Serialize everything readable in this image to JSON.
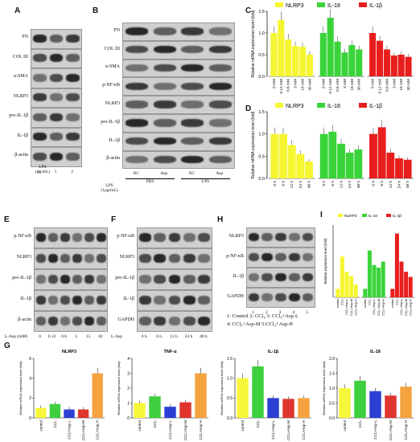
{
  "panels": {
    "A": {
      "label": "A",
      "rows": [
        "FN",
        "COL III",
        "α-SMA",
        "NLRP3",
        "pro-IL-1β",
        "IL-1β",
        "β-actin"
      ],
      "lps_label": "LPS\n(μg/mL)",
      "lanes": [
        "0",
        "1",
        "2"
      ]
    },
    "B": {
      "label": "B",
      "rows": [
        "FN",
        "COL III",
        "α-SMA",
        "p-NF-κB",
        "NLRP3",
        "pro-IL-1β",
        "IL-1β",
        "β-actin"
      ],
      "lanes": [
        "NC",
        "Asp",
        "NC",
        "Asp"
      ],
      "groups": [
        "PBS",
        "LPS"
      ],
      "lps_label": "LPS\n(1μg/mL)"
    },
    "C": {
      "label": "C",
      "ylabel": "Relative mRNA expression level (fold)"
    },
    "D": {
      "label": "D",
      "ylabel": "Relative mRNA expression level (fold)"
    },
    "E": {
      "label": "E",
      "rows": [
        "p-NF-κB",
        "NLRP3",
        "pro-IL-1β",
        "IL-1β",
        "β-actin"
      ],
      "xlabel": "L-Asp (mM)",
      "lanes": [
        "0",
        "0.12",
        "0.6",
        "3",
        "15",
        "30"
      ]
    },
    "F": {
      "label": "F",
      "rows": [
        "p-NF-κB",
        "NLRP3",
        "pro-IL-1β",
        "IL-1β",
        "GAPDH"
      ],
      "xlabel": "L-Asp",
      "lanes": [
        "0 h",
        "6 h",
        "12 h",
        "24 h",
        "48 h"
      ]
    },
    "H": {
      "label": "H",
      "rows": [
        "NLRP3",
        "p-NF-κB",
        "IL-1β",
        "GAPDH"
      ],
      "lanes": [
        "1",
        "2",
        "3",
        "4",
        "5"
      ],
      "legend1": "1: Control  2: CCl₄  3: CCl₄+Asp-L",
      "legend2": "4: CCl₄+Asp-M  5:CCl₄+Asp-H"
    },
    "I": {
      "label": "I"
    },
    "G": {
      "label": "G"
    }
  },
  "chart_data": [
    {
      "type": "bar",
      "id": "C",
      "title": "",
      "ylabel": "Relative mRNA expression level (fold)",
      "ylim": [
        0,
        1.5
      ],
      "yticks": [
        "0.0",
        "0.5",
        "1.0",
        "1.5"
      ],
      "legend": [
        "NLRP3",
        "IL-18",
        "IL-1β"
      ],
      "colors": [
        "#f5f531",
        "#3ad43a",
        "#e81e1e"
      ],
      "categories": [
        "0 mM",
        "0.12 mM",
        "0.6 mM",
        "3 mM",
        "15 mM",
        "30 mM"
      ],
      "series": [
        {
          "name": "NLRP3",
          "values": [
            1.0,
            1.3,
            0.85,
            0.7,
            0.68,
            0.5
          ]
        },
        {
          "name": "IL-18",
          "values": [
            1.0,
            1.35,
            0.8,
            0.55,
            0.72,
            0.62
          ]
        },
        {
          "name": "IL-1β",
          "values": [
            1.0,
            0.82,
            0.62,
            0.48,
            0.5,
            0.45
          ]
        }
      ],
      "annotations": [
        "**",
        "*",
        "*",
        "*",
        "*",
        "**"
      ]
    },
    {
      "type": "bar",
      "id": "D",
      "ylabel": "Relative mRNA expression level (fold)",
      "ylim": [
        0,
        1.5
      ],
      "yticks": [
        "0.0",
        "0.5",
        "1.0",
        "1.5"
      ],
      "legend": [
        "NLRP3",
        "IL-18",
        "IL-1β"
      ],
      "colors": [
        "#f5f531",
        "#3ad43a",
        "#e81e1e"
      ],
      "categories": [
        "0 h",
        "6 h",
        "12 h",
        "24 h",
        "48 h"
      ],
      "series": [
        {
          "name": "NLRP3",
          "values": [
            1.0,
            1.0,
            0.75,
            0.55,
            0.38
          ]
        },
        {
          "name": "IL-18",
          "values": [
            1.0,
            1.05,
            0.78,
            0.58,
            0.65
          ]
        },
        {
          "name": "IL-1β",
          "values": [
            1.0,
            1.15,
            0.58,
            0.45,
            0.42
          ]
        }
      ],
      "annotations": [
        "*",
        "*",
        "**",
        "*",
        "*",
        "**",
        "*",
        "*"
      ]
    },
    {
      "type": "bar",
      "id": "I",
      "ylabel": "Relative expression level (fold)",
      "legend": [
        "NLRP3",
        "IL-18",
        "IL-1β"
      ],
      "colors": [
        "#f5f531",
        "#3ad43a",
        "#e81e1e"
      ],
      "categories": [
        "control",
        "CCl₄",
        "CCl₄+Asp-L",
        "CCl₄+Asp-M",
        "CCl₄+Asp-H"
      ],
      "series": [
        {
          "name": "NLRP3",
          "values": [
            1.0,
            4.8,
            3.0,
            2.5,
            1.5
          ]
        },
        {
          "name": "IL-18",
          "values": [
            1.0,
            5.5,
            3.8,
            3.5,
            4.2
          ]
        },
        {
          "name": "IL-1β",
          "values": [
            1.0,
            7.5,
            4.2,
            3.0,
            2.4
          ]
        }
      ]
    },
    {
      "type": "bar",
      "id": "G1",
      "title": "NLRP3",
      "ylabel": "Relative mRNA expression level (fold)",
      "ylim": [
        0,
        6
      ],
      "yticks": [
        "0",
        "2",
        "4",
        "6"
      ],
      "categories": [
        "control",
        "CCl₄",
        "CCl₄+Asp-L",
        "CCl₄+Asp-M",
        "CCl₄+Asp-H"
      ],
      "values": [
        1.0,
        1.4,
        0.85,
        0.85,
        4.5
      ],
      "colors": [
        "#f7f73a",
        "#3dcf3d",
        "#2b3fd4",
        "#e0342e",
        "#f4a340"
      ]
    },
    {
      "type": "bar",
      "id": "G2",
      "title": "TNF-α",
      "ylabel": "Relative mRNA expression level (fold)",
      "ylim": [
        0,
        4
      ],
      "yticks": [
        "0",
        "1",
        "2",
        "3",
        "4"
      ],
      "categories": [
        "control",
        "CCl₄",
        "CCl₄+Asp-L",
        "CCl₄+Asp-M",
        "CCl₄+Asp-H"
      ],
      "values": [
        1.0,
        1.45,
        0.75,
        1.05,
        3.0
      ],
      "colors": [
        "#f7f73a",
        "#3dcf3d",
        "#2b3fd4",
        "#e0342e",
        "#f4a340"
      ]
    },
    {
      "type": "bar",
      "id": "G3",
      "title": "IL-1β",
      "ylabel": "Relative mRNA expression level (fold)",
      "ylim": [
        0,
        1.5
      ],
      "yticks": [
        "0.0",
        "0.5",
        "1.0",
        "1.5"
      ],
      "categories": [
        "control",
        "CCl₄",
        "CCl₄+Asp-L",
        "CCl₄+Asp-M",
        "CCl₄+Asp-H"
      ],
      "values": [
        1.0,
        1.3,
        0.5,
        0.48,
        0.5
      ],
      "colors": [
        "#f7f73a",
        "#3dcf3d",
        "#2b3fd4",
        "#e0342e",
        "#f4a340"
      ]
    },
    {
      "type": "bar",
      "id": "G4",
      "title": "IL-18",
      "ylabel": "Relative mRNA expression level (fold)",
      "ylim": [
        0,
        2.0
      ],
      "yticks": [
        "0.0",
        "0.5",
        "1.0",
        "1.5",
        "2.0"
      ],
      "categories": [
        "control",
        "CCl₄",
        "CCl₄+Asp-L",
        "CCl₄+Asp-M",
        "CCl₄+Asp-H"
      ],
      "values": [
        1.0,
        1.25,
        0.9,
        0.75,
        1.05
      ],
      "colors": [
        "#f7f73a",
        "#3dcf3d",
        "#2b3fd4",
        "#e0342e",
        "#f4a340"
      ]
    }
  ]
}
